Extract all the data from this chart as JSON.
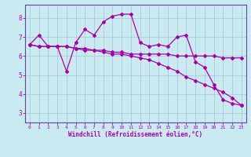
{
  "background_color": "#c8eaf0",
  "grid_color": "#a8ccd8",
  "line_color": "#aa00aa",
  "marker": "D",
  "marker_size": 2,
  "xlabel": "Windchill (Refroidissement éolien,°C)",
  "xlabel_color": "#aa00aa",
  "tick_color": "#aa00aa",
  "spine_color": "#6644aa",
  "xlim": [
    -0.5,
    23.5
  ],
  "ylim": [
    2.5,
    8.7
  ],
  "yticks": [
    3,
    4,
    5,
    6,
    7,
    8
  ],
  "xticks": [
    0,
    1,
    2,
    3,
    4,
    5,
    6,
    7,
    8,
    9,
    10,
    11,
    12,
    13,
    14,
    15,
    16,
    17,
    18,
    19,
    20,
    21,
    22,
    23
  ],
  "series": [
    [
      6.6,
      7.1,
      6.5,
      6.5,
      5.2,
      6.7,
      7.4,
      7.1,
      7.8,
      8.1,
      8.2,
      8.2,
      6.7,
      6.5,
      6.6,
      6.5,
      7.0,
      7.1,
      5.7,
      5.4,
      4.5,
      3.7,
      3.5,
      3.4
    ],
    [
      6.6,
      6.5,
      6.5,
      6.5,
      6.5,
      6.4,
      6.4,
      6.3,
      6.3,
      6.2,
      6.2,
      6.1,
      6.1,
      6.1,
      6.1,
      6.1,
      6.0,
      6.0,
      6.0,
      6.0,
      6.0,
      5.9,
      5.9,
      5.9
    ],
    [
      6.6,
      6.5,
      6.5,
      6.5,
      6.5,
      6.4,
      6.3,
      6.3,
      6.2,
      6.1,
      6.1,
      6.0,
      5.9,
      5.8,
      5.6,
      5.4,
      5.2,
      4.9,
      4.7,
      4.5,
      4.3,
      4.1,
      3.8,
      3.4
    ]
  ]
}
